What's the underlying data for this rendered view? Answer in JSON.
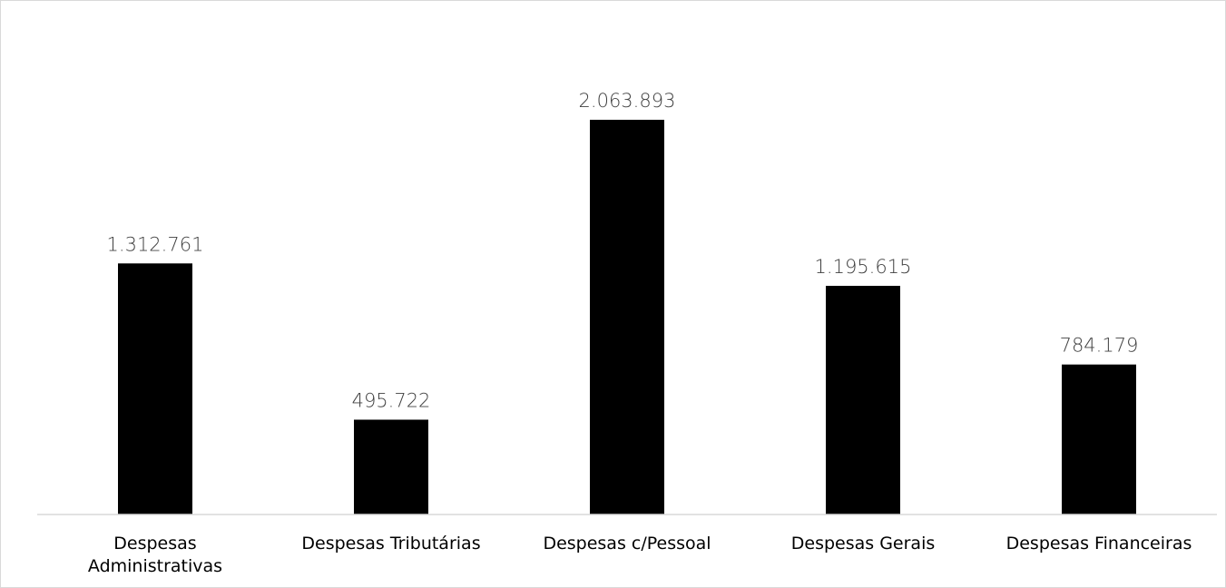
{
  "chart_data": {
    "type": "bar",
    "title": "",
    "xlabel": "",
    "ylabel": "",
    "categories": [
      [
        "Despesas",
        "Administrativas"
      ],
      [
        "Despesas Tributárias"
      ],
      [
        "Despesas c/Pessoal"
      ],
      [
        "Despesas Gerais"
      ],
      [
        "Despesas Financeiras"
      ]
    ],
    "values": [
      1312761,
      495722,
      2063893,
      1195615,
      784179
    ],
    "value_labels": [
      "1.312.761",
      "495.722",
      "2.063.893",
      "1.195.615",
      "784.179"
    ],
    "ylim": [
      0,
      2300000
    ],
    "grid": false,
    "legend": "none",
    "bar_color": "#000000",
    "axis_color": "#d9d9d9"
  }
}
